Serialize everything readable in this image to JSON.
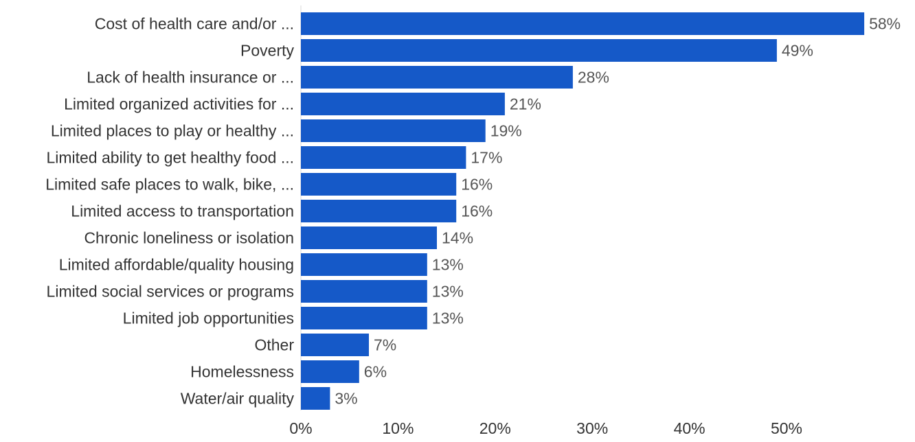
{
  "chart_data": {
    "type": "bar",
    "orientation": "horizontal",
    "categories": [
      "Cost of health care and/or ...",
      "Poverty",
      "Lack of health insurance or ...",
      "Limited organized activities for ...",
      "Limited places to play or healthy ...",
      "Limited ability to get healthy food ...",
      "Limited safe places to walk, bike, ...",
      "Limited access to transportation",
      "Chronic loneliness or isolation",
      "Limited affordable/quality housing",
      "Limited social services or programs",
      "Limited job opportunities",
      "Other",
      "Homelessness",
      "Water/air quality"
    ],
    "values": [
      58,
      49,
      28,
      21,
      19,
      17,
      16,
      16,
      14,
      13,
      13,
      13,
      7,
      6,
      3
    ],
    "value_labels": [
      "58%",
      "49%",
      "28%",
      "21%",
      "19%",
      "17%",
      "16%",
      "16%",
      "14%",
      "13%",
      "13%",
      "13%",
      "7%",
      "6%",
      "3%"
    ],
    "x_ticks": [
      0,
      10,
      20,
      30,
      40,
      50
    ],
    "x_tick_labels": [
      "0%",
      "10%",
      "20%",
      "30%",
      "40%",
      "50%"
    ],
    "xlim": [
      0,
      58
    ],
    "bar_color": "#1559c8",
    "grid": false,
    "legend": "none"
  }
}
